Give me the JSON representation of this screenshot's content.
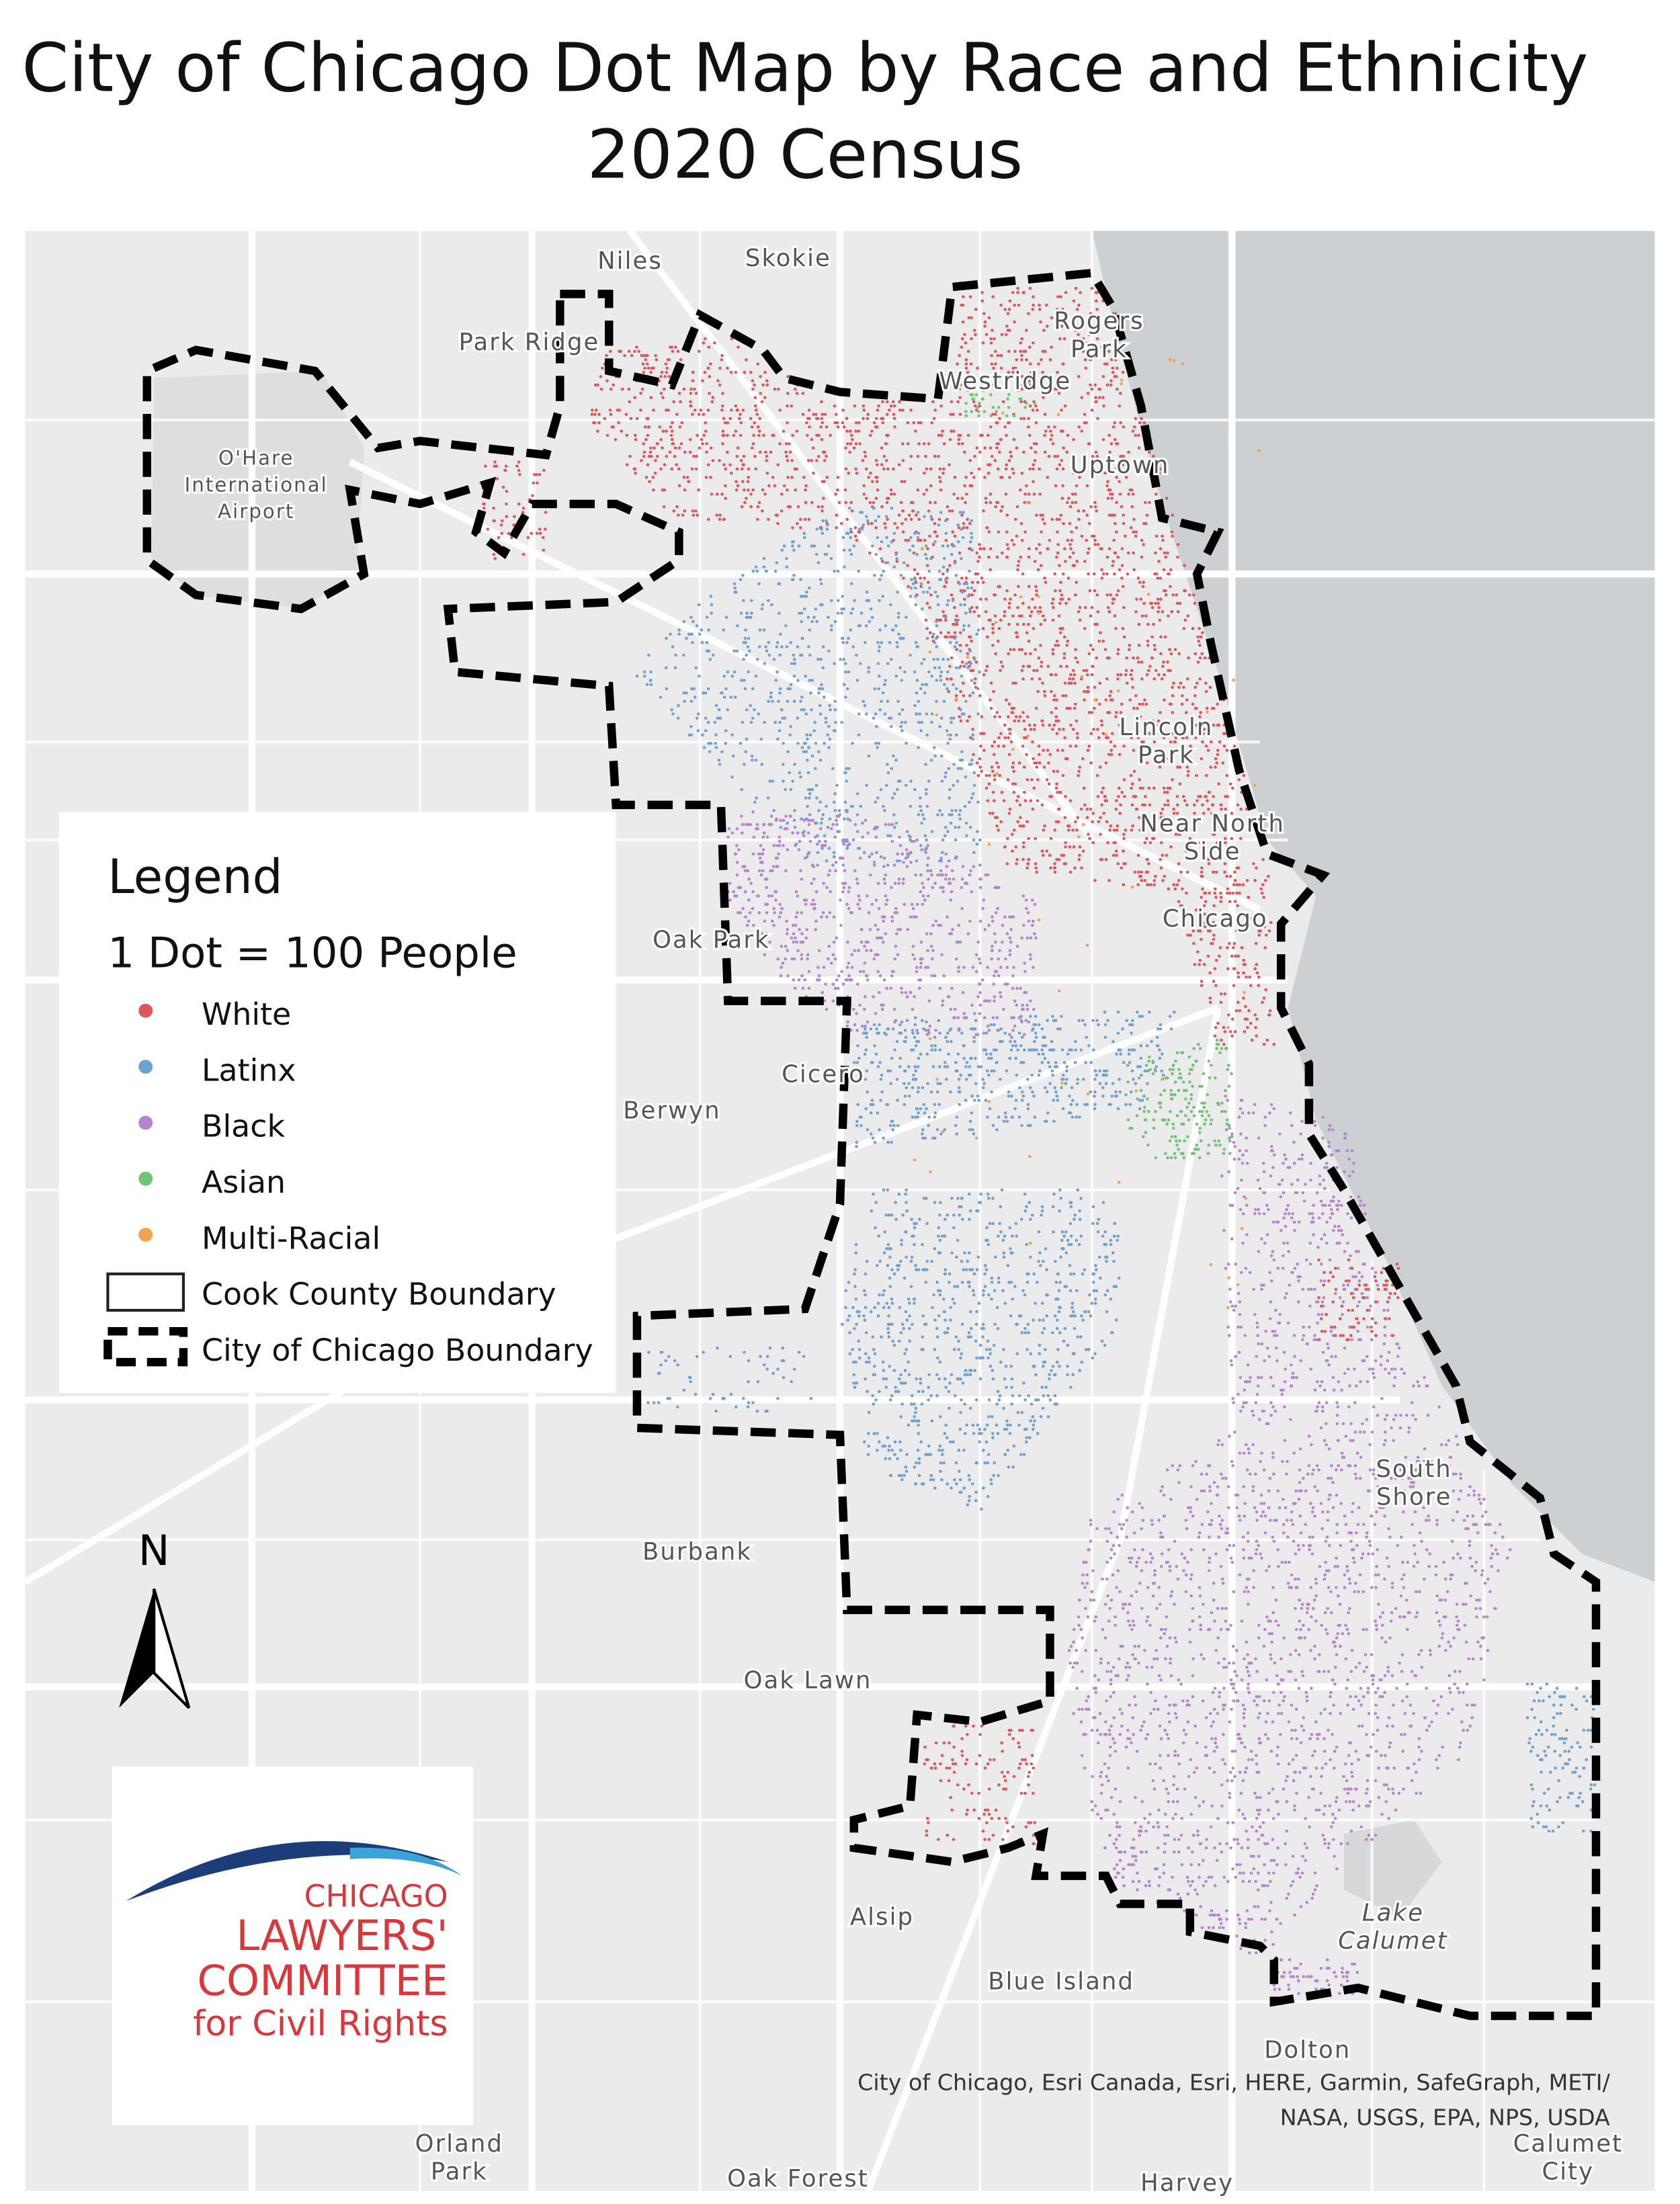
{
  "header": {
    "title": "City of Chicago Dot Map by Race and Ethnicity",
    "subtitle": "2020 Census"
  },
  "legend": {
    "title": "Legend",
    "scale": "1 Dot = 100 People",
    "items": [
      {
        "label": "White",
        "color": "#e0575a"
      },
      {
        "label": "Latinx",
        "color": "#6fa2d3"
      },
      {
        "label": "Black",
        "color": "#b685cf"
      },
      {
        "label": "Asian",
        "color": "#72c373"
      },
      {
        "label": "Multi-Racial",
        "color": "#f5a24d"
      }
    ],
    "boundaries": [
      "Cook County Boundary",
      "City of Chicago Boundary"
    ]
  },
  "places": [
    {
      "lines": [
        "Niles"
      ]
    },
    {
      "lines": [
        "Skokie"
      ]
    },
    {
      "lines": [
        "Park Ridge"
      ]
    },
    {
      "lines": [
        "Rogers",
        "Park"
      ]
    },
    {
      "lines": [
        "Westridge"
      ]
    },
    {
      "lines": [
        "O'Hare",
        "International",
        "Airport"
      ]
    },
    {
      "lines": [
        "Uptown"
      ]
    },
    {
      "lines": [
        "Lincoln",
        "Park"
      ]
    },
    {
      "lines": [
        "Near North",
        "Side"
      ]
    },
    {
      "lines": [
        "Chicago"
      ]
    },
    {
      "lines": [
        "Oak Park"
      ]
    },
    {
      "lines": [
        "Cicero"
      ]
    },
    {
      "lines": [
        "Berwyn"
      ]
    },
    {
      "lines": [
        "South",
        "Shore"
      ]
    },
    {
      "lines": [
        "Burbank"
      ]
    },
    {
      "lines": [
        "Oak Lawn"
      ]
    },
    {
      "lines": [
        "Lake",
        "Calumet"
      ]
    },
    {
      "lines": [
        "Alsip"
      ]
    },
    {
      "lines": [
        "Blue Island"
      ]
    },
    {
      "lines": [
        "Dolton"
      ]
    },
    {
      "lines": [
        "Orland",
        "Park"
      ]
    },
    {
      "lines": [
        "Oak Forest"
      ]
    },
    {
      "lines": [
        "Harvey"
      ]
    },
    {
      "lines": [
        "Calumet",
        "City"
      ]
    }
  ],
  "north_arrow": "N",
  "logo": {
    "lines": [
      "CHICAGO",
      "LAWYERS'",
      "COMMITTEE",
      "for Civil Rights"
    ]
  },
  "attribution": [
    "City of Chicago, Esri Canada, Esri, HERE, Garmin, SafeGraph, METI/",
    "NASA, USGS, EPA, NPS, USDA"
  ]
}
